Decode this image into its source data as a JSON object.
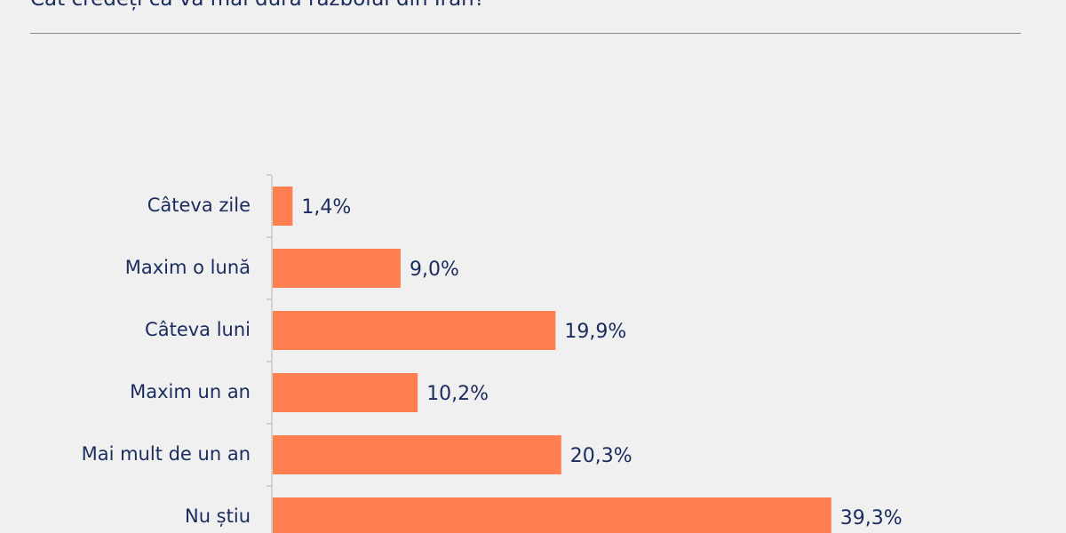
{
  "title": "Cât credeți că va mai dura războiul din Iran?",
  "colors": {
    "bar": "#ff7f50",
    "text": "#1a2b5e",
    "axis": "#c8c8c8"
  },
  "chart_data": {
    "type": "bar",
    "orientation": "horizontal",
    "title": "Cât credeți că va mai dura războiul din Iran?",
    "categories": [
      "Câteva zile",
      "Maxim o lună",
      "Câteva luni",
      "Maxim un an",
      "Mai mult de un an",
      "Nu știu"
    ],
    "values": [
      1.4,
      9.0,
      19.9,
      10.2,
      20.3,
      39.3
    ],
    "value_labels": [
      "1,4%",
      "9,0%",
      "19,9%",
      "10,2%",
      "20,3%",
      "39,3%"
    ],
    "unit": "%",
    "xlim": [
      0,
      100
    ],
    "grid": false,
    "legend": "none"
  }
}
